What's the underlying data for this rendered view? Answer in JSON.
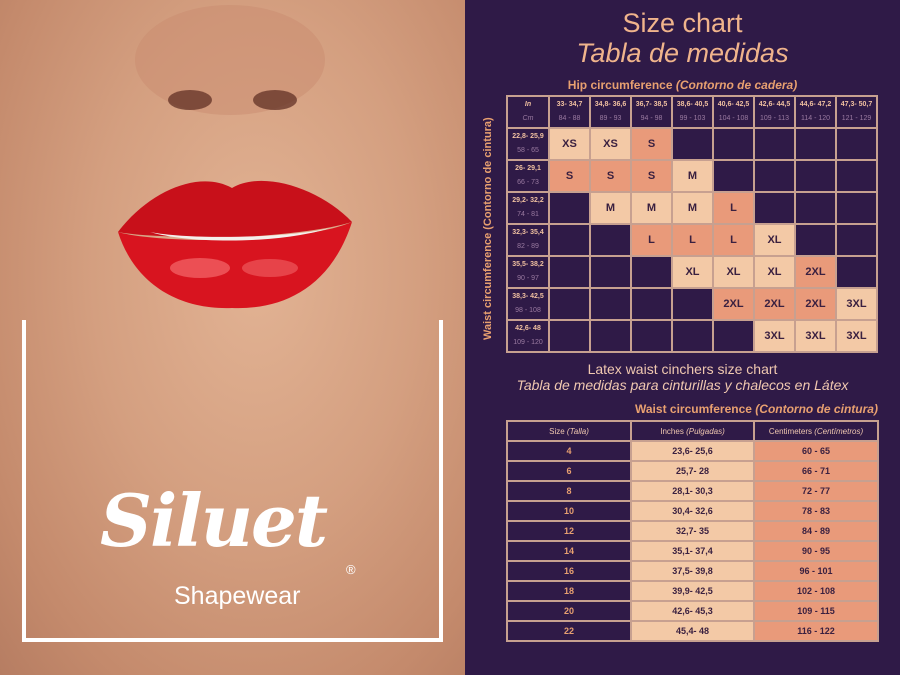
{
  "brand": {
    "logo": "Siluet",
    "registered": "®",
    "tagline": "Shapewear"
  },
  "titles": {
    "en": "Size chart",
    "es": "Tabla de medidas"
  },
  "hip_title": {
    "en": "Hip circumference",
    "es": "(Contorno de cadera)"
  },
  "waist_vertical": "Waist circumference (Contorno de cintura)",
  "grid": {
    "corner": {
      "in": "In",
      "cm": "Cm"
    },
    "hip_cols": [
      {
        "in": "33- 34,7",
        "cm": "84 - 88"
      },
      {
        "in": "34,8- 36,6",
        "cm": "89 - 93"
      },
      {
        "in": "36,7- 38,5",
        "cm": "94 - 98"
      },
      {
        "in": "38,6- 40,5",
        "cm": "99 - 103"
      },
      {
        "in": "40,6- 42,5",
        "cm": "104 - 108"
      },
      {
        "in": "42,6- 44,5",
        "cm": "109 - 113"
      },
      {
        "in": "44,6- 47,2",
        "cm": "114 - 120"
      },
      {
        "in": "47,3- 50,7",
        "cm": "121 - 129"
      }
    ],
    "rows": [
      {
        "in": "22,8- 25,9",
        "cm": "58 - 65",
        "cells": [
          [
            "XS",
            "L"
          ],
          [
            "XS",
            "L"
          ],
          [
            "S",
            "D"
          ],
          null,
          null,
          null,
          null,
          null
        ]
      },
      {
        "in": "26- 29,1",
        "cm": "66 - 73",
        "cells": [
          [
            "S",
            "D"
          ],
          [
            "S",
            "D"
          ],
          [
            "S",
            "D"
          ],
          [
            "M",
            "L"
          ],
          null,
          null,
          null,
          null
        ]
      },
      {
        "in": "29,2- 32,2",
        "cm": "74 - 81",
        "cells": [
          null,
          [
            "M",
            "L"
          ],
          [
            "M",
            "L"
          ],
          [
            "M",
            "L"
          ],
          [
            "L",
            "D"
          ],
          null,
          null,
          null
        ]
      },
      {
        "in": "32,3- 35,4",
        "cm": "82 - 89",
        "cells": [
          null,
          null,
          [
            "L",
            "D"
          ],
          [
            "L",
            "D"
          ],
          [
            "L",
            "D"
          ],
          [
            "XL",
            "L"
          ],
          null,
          null
        ]
      },
      {
        "in": "35,5- 38,2",
        "cm": "90 - 97",
        "cells": [
          null,
          null,
          null,
          [
            "XL",
            "L"
          ],
          [
            "XL",
            "L"
          ],
          [
            "XL",
            "L"
          ],
          [
            "2XL",
            "D"
          ],
          null
        ]
      },
      {
        "in": "38,3- 42,5",
        "cm": "98 - 108",
        "cells": [
          null,
          null,
          null,
          null,
          [
            "2XL",
            "D"
          ],
          [
            "2XL",
            "D"
          ],
          [
            "2XL",
            "D"
          ],
          [
            "3XL",
            "L"
          ]
        ]
      },
      {
        "in": "42,6- 48",
        "cm": "109 - 120",
        "cells": [
          null,
          null,
          null,
          null,
          null,
          [
            "3XL",
            "L"
          ],
          [
            "3XL",
            "L"
          ],
          [
            "3XL",
            "L"
          ]
        ]
      }
    ]
  },
  "latex": {
    "title_en": "Latex waist cinchers size chart",
    "title_es": "Tabla de medidas para cinturillas y chalecos en Látex",
    "waist_en": "Waist circumference",
    "waist_es": "(Contorno de cintura)",
    "headers": [
      {
        "en": "Size",
        "es": "(Talla)"
      },
      {
        "en": "Inches",
        "es": "(Pulgadas)"
      },
      {
        "en": "Centimeters",
        "es": "(Centímetros)"
      }
    ],
    "rows": [
      [
        "4",
        "23,6- 25,6",
        "60 - 65"
      ],
      [
        "6",
        "25,7- 28",
        "66 - 71"
      ],
      [
        "8",
        "28,1- 30,3",
        "72 - 77"
      ],
      [
        "10",
        "30,4- 32,6",
        "78 - 83"
      ],
      [
        "12",
        "32,7- 35",
        "84 - 89"
      ],
      [
        "14",
        "35,1- 37,4",
        "90 - 95"
      ],
      [
        "16",
        "37,5- 39,8",
        "96 - 101"
      ],
      [
        "18",
        "39,9- 42,5",
        "102 - 108"
      ],
      [
        "20",
        "42,6- 45,3",
        "109 - 115"
      ],
      [
        "22",
        "45,4- 48",
        "116 - 122"
      ]
    ]
  },
  "colors": {
    "background": "#2f1a47",
    "light_cell": "#f3c9a6",
    "dark_cell": "#e99a7a",
    "accent": "#e8a070",
    "lips": "#d4101c"
  }
}
